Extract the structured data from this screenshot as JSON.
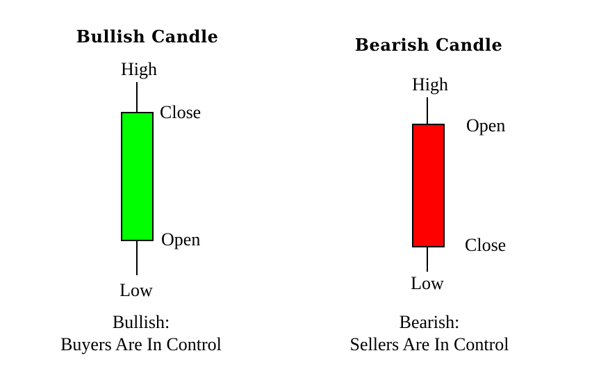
{
  "bullish": {
    "title": "Bullish Candle",
    "high_label": "High",
    "close_label": "Close",
    "open_label": "Open",
    "low_label": "Low",
    "caption_line1": "Bullish:",
    "caption_line2": "Buyers Are In Control",
    "body_color": "#00ff00"
  },
  "bearish": {
    "title": "Bearish Candle",
    "high_label": "High",
    "open_label": "Open",
    "close_label": "Close",
    "low_label": "Low",
    "caption_line1": "Bearish:",
    "caption_line2": "Sellers Are In Control",
    "body_color": "#ff0000"
  }
}
